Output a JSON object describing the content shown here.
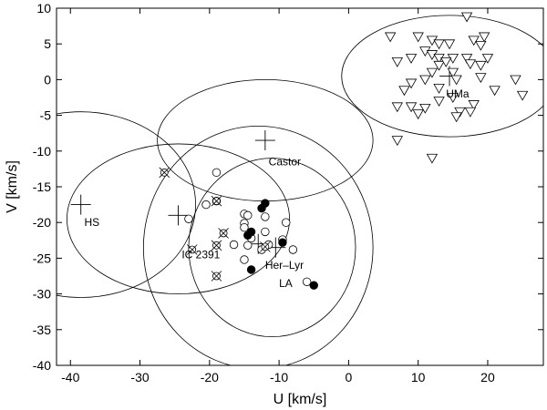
{
  "chart_data": {
    "type": "scatter",
    "title": "",
    "xlabel": "U [km/s]",
    "ylabel": "V [km/s]",
    "xlim": [
      -42,
      28
    ],
    "ylim": [
      -40,
      10
    ],
    "grid": false,
    "xticks": [
      -40,
      -30,
      -20,
      -10,
      0,
      10,
      20
    ],
    "yticks": [
      -40,
      -35,
      -30,
      -25,
      -20,
      -15,
      -10,
      -5,
      0,
      5,
      10
    ],
    "ellipses": [
      {
        "name": "Castor",
        "cx": -12,
        "cy": -8.5,
        "rx": 15.5,
        "ry": 8.5
      },
      {
        "name": "UMa",
        "cx": 14.5,
        "cy": 0.5,
        "rx": 15.5,
        "ry": 8.5
      },
      {
        "name": "HS",
        "cx": -38.5,
        "cy": -17.5,
        "rx": 16.5,
        "ry": 13
      },
      {
        "name": "IC 2391",
        "cx": -24.5,
        "cy": -19.5,
        "rx": 16,
        "ry": 10.5
      },
      {
        "name": "Her-Lyr",
        "cx": -13,
        "cy": -23.5,
        "rx": 16.5,
        "ry": 17
      },
      {
        "name": "LA",
        "cx": -11,
        "cy": -23.5,
        "rx": 12,
        "ry": 12.5
      }
    ],
    "centers": [
      {
        "x": -12,
        "y": -8.5
      },
      {
        "x": 14.5,
        "y": 0.5
      },
      {
        "x": -38.5,
        "y": -17.5
      },
      {
        "x": -24.5,
        "y": -19
      },
      {
        "x": -13,
        "y": -23
      },
      {
        "x": -10.5,
        "y": -23.5
      }
    ],
    "annotations": [
      {
        "text": "Castor",
        "x": -11.5,
        "y": -12
      },
      {
        "text": "UMa",
        "x": 14,
        "y": -2.5
      },
      {
        "text": "HS",
        "x": -38,
        "y": -20.5
      },
      {
        "text": "IC 2391",
        "x": -24,
        "y": -25
      },
      {
        "text": "Her–Lyr",
        "x": -12,
        "y": -26.5
      },
      {
        "text": "LA",
        "x": -10,
        "y": -29
      }
    ],
    "series": [
      {
        "marker": "open-circle",
        "points": [
          [
            -19,
            -13
          ],
          [
            -20.5,
            -17.5
          ],
          [
            -19,
            -17
          ],
          [
            -23,
            -19.5
          ],
          [
            -15,
            -18.8
          ],
          [
            -14.5,
            -19
          ],
          [
            -12,
            -19.2
          ],
          [
            -15,
            -20.1
          ],
          [
            -15,
            -20.7
          ],
          [
            -9,
            -20
          ],
          [
            -12,
            -21.3
          ],
          [
            -14,
            -22.2
          ],
          [
            -9.5,
            -22.4
          ],
          [
            -16.5,
            -23.1
          ],
          [
            -14.5,
            -23.2
          ],
          [
            -11.5,
            -23.1
          ],
          [
            -12.5,
            -23.8
          ],
          [
            -8,
            -23.8
          ],
          [
            -15,
            -25.2
          ],
          [
            -6,
            -28.3
          ]
        ]
      },
      {
        "marker": "filled-circle",
        "points": [
          [
            -12,
            -17.3
          ],
          [
            -12.5,
            -18
          ],
          [
            -14,
            -21.3
          ],
          [
            -14.5,
            -21.8
          ],
          [
            -9.5,
            -22.8
          ],
          [
            -14,
            -26.6
          ],
          [
            -5,
            -28.8
          ]
        ]
      },
      {
        "marker": "circle-cross",
        "points": [
          [
            -26.5,
            -13
          ],
          [
            -19,
            -17
          ],
          [
            -18,
            -21.5
          ],
          [
            -19,
            -23.2
          ],
          [
            -12,
            -23.4
          ],
          [
            -22.5,
            -23.8
          ],
          [
            -19,
            -27.5
          ]
        ]
      },
      {
        "marker": "triangle-down",
        "points": [
          [
            17,
            8.8
          ],
          [
            6,
            6
          ],
          [
            10,
            6
          ],
          [
            12,
            5.5
          ],
          [
            18,
            5.5
          ],
          [
            19.5,
            6
          ],
          [
            13,
            5
          ],
          [
            14.5,
            5
          ],
          [
            19,
            4.8
          ],
          [
            11,
            4
          ],
          [
            12,
            3.5
          ],
          [
            9,
            3
          ],
          [
            13,
            3
          ],
          [
            15,
            3
          ],
          [
            17,
            3
          ],
          [
            20,
            3
          ],
          [
            7,
            2.5
          ],
          [
            13,
            2
          ],
          [
            14,
            2.5
          ],
          [
            17.5,
            2.2
          ],
          [
            19,
            2
          ],
          [
            12,
            1
          ],
          [
            15,
            1
          ],
          [
            11,
            0
          ],
          [
            15.5,
            0
          ],
          [
            9,
            -0.5
          ],
          [
            19,
            0.3
          ],
          [
            24,
            0
          ],
          [
            8,
            -1.5
          ],
          [
            13,
            -1.2
          ],
          [
            21,
            -1.5
          ],
          [
            25,
            -2.2
          ],
          [
            15,
            -2.5
          ],
          [
            13,
            -3
          ],
          [
            18,
            -3.5
          ],
          [
            7,
            -3.8
          ],
          [
            9,
            -3.8
          ],
          [
            11,
            -4
          ],
          [
            16,
            -4.5
          ],
          [
            17.5,
            -4.5
          ],
          [
            10,
            -4.8
          ],
          [
            15.5,
            -5.2
          ],
          [
            7,
            -8.5
          ],
          [
            12,
            -11
          ]
        ]
      }
    ]
  }
}
